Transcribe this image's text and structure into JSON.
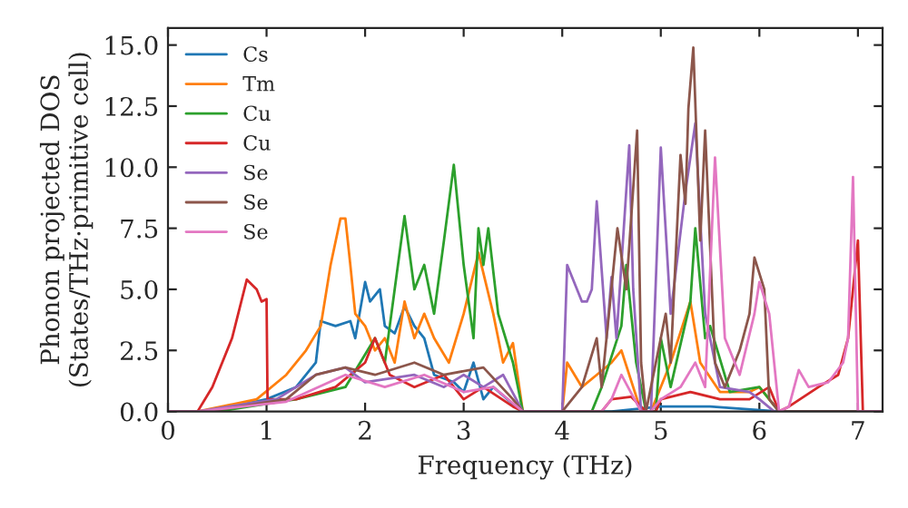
{
  "chart_data": {
    "type": "line",
    "xlabel": "Frequency (THz)",
    "ylabel": "Phonon projected DOS\n(States/THz·primitive cell)",
    "xlim": [
      0,
      7.25
    ],
    "ylim": [
      0,
      15.7
    ],
    "xticks": [
      0,
      1,
      2,
      3,
      4,
      5,
      6,
      7
    ],
    "yticks": [
      {
        "value": 0,
        "label": "0.0"
      },
      {
        "value": 2.5,
        "label": "2.5"
      },
      {
        "value": 5,
        "label": "5.0"
      },
      {
        "value": 7.5,
        "label": "7.5"
      },
      {
        "value": 10,
        "label": "10.0"
      },
      {
        "value": 12.5,
        "label": "12.5"
      },
      {
        "value": 15,
        "label": "15.0"
      }
    ],
    "grid": false,
    "legend": "top left",
    "marker": "none",
    "line_style": "solid",
    "series": [
      {
        "name": "Cs",
        "color": "#1f77b4",
        "x": [
          0,
          0.4,
          1.0,
          1.3,
          1.5,
          1.55,
          1.7,
          1.85,
          1.9,
          2.0,
          2.05,
          2.15,
          2.2,
          2.3,
          2.4,
          2.5,
          2.6,
          2.7,
          2.9,
          3.0,
          3.1,
          3.2,
          3.3,
          3.5,
          3.6,
          4.5,
          5.0,
          5.5,
          6.2,
          7.25
        ],
        "values": [
          0,
          0,
          0.5,
          1.0,
          2.0,
          3.7,
          3.5,
          3.7,
          3.0,
          5.3,
          4.5,
          5.0,
          3.5,
          3.2,
          4.3,
          3.5,
          3.0,
          1.5,
          1.2,
          0.8,
          2.0,
          0.5,
          1.0,
          0.3,
          0,
          0,
          0.2,
          0.2,
          0,
          0
        ]
      },
      {
        "name": "Tm",
        "color": "#ff7f0e",
        "x": [
          0,
          0.3,
          0.9,
          1.2,
          1.4,
          1.55,
          1.65,
          1.75,
          1.8,
          1.85,
          1.9,
          2.0,
          2.1,
          2.2,
          2.3,
          2.4,
          2.5,
          2.6,
          2.7,
          2.85,
          3.0,
          3.15,
          3.3,
          3.4,
          3.5,
          3.6,
          4.0,
          4.05,
          4.2,
          4.35,
          4.5,
          4.6,
          4.8,
          4.9,
          5.1,
          5.3,
          5.4,
          5.6,
          5.9,
          6.0,
          6.2,
          7.25
        ],
        "values": [
          0,
          0,
          0.5,
          1.5,
          2.5,
          3.5,
          6.0,
          7.9,
          7.9,
          6.0,
          4.0,
          3.5,
          2.5,
          3.0,
          2.0,
          4.5,
          3.0,
          4.0,
          3.0,
          2.0,
          4.0,
          6.5,
          4.0,
          2.0,
          2.8,
          0,
          0,
          2.0,
          1.0,
          1.5,
          2.0,
          2.5,
          0,
          0,
          2.0,
          4.5,
          2.0,
          0.8,
          0.8,
          1.0,
          0,
          0
        ]
      },
      {
        "name": "Cu",
        "color": "#2ca02c",
        "x": [
          0,
          0.5,
          1.3,
          1.8,
          2.1,
          2.2,
          2.3,
          2.4,
          2.5,
          2.6,
          2.7,
          2.8,
          2.9,
          3.0,
          3.1,
          3.15,
          3.2,
          3.25,
          3.35,
          3.5,
          3.6,
          4.3,
          4.4,
          4.6,
          4.65,
          4.75,
          4.85,
          4.95,
          5.0,
          5.1,
          5.3,
          5.35,
          5.45,
          5.5,
          5.7,
          6.0,
          6.2,
          7.25
        ],
        "values": [
          0,
          0,
          0.5,
          1.0,
          3.0,
          2.0,
          5.0,
          8.0,
          5.0,
          6.0,
          4.0,
          7.0,
          10.1,
          6.0,
          3.0,
          7.5,
          6.0,
          7.5,
          4.0,
          2.0,
          0,
          0,
          1.0,
          3.5,
          6.0,
          2.0,
          0,
          0,
          3.0,
          1.0,
          4.5,
          7.5,
          3.0,
          3.5,
          0.8,
          1.0,
          0,
          0
        ]
      },
      {
        "name": "Cu",
        "color": "#d62728",
        "x": [
          0,
          0.3,
          0.45,
          0.65,
          0.8,
          0.9,
          0.95,
          1.0,
          1.01,
          1.3,
          1.7,
          2.0,
          2.1,
          2.25,
          2.5,
          2.8,
          3.0,
          3.2,
          3.5,
          3.6,
          4.4,
          4.5,
          4.7,
          4.85,
          4.95,
          5.0,
          5.3,
          5.6,
          5.9,
          6.1,
          6.2,
          6.3,
          6.6,
          6.8,
          6.9,
          7.0,
          7.05,
          7.25
        ],
        "values": [
          0,
          0,
          1.0,
          3.0,
          5.4,
          5.0,
          4.5,
          4.6,
          0.5,
          0.5,
          1.0,
          2.0,
          3.0,
          1.5,
          1.0,
          1.5,
          0.5,
          1.0,
          0.2,
          0,
          0,
          0.5,
          0.6,
          0,
          0,
          0.5,
          0.8,
          0.5,
          0.5,
          1.0,
          0,
          0.2,
          1.0,
          1.5,
          3.0,
          7.0,
          0,
          0
        ]
      },
      {
        "name": "Se",
        "color": "#9467bd",
        "x": [
          0,
          0.3,
          1.1,
          1.5,
          1.8,
          2.0,
          2.5,
          2.8,
          3.0,
          3.2,
          3.4,
          3.6,
          4.0,
          4.05,
          4.1,
          4.2,
          4.25,
          4.3,
          4.35,
          4.45,
          4.5,
          4.55,
          4.6,
          4.68,
          4.72,
          4.8,
          4.9,
          5.0,
          5.1,
          5.25,
          5.35,
          5.45,
          5.6,
          5.9,
          6.0,
          6.15,
          7.25
        ],
        "values": [
          0,
          0,
          0.5,
          1.5,
          1.8,
          1.2,
          1.5,
          1.0,
          1.5,
          1.0,
          1.5,
          0,
          0,
          6.0,
          5.5,
          4.5,
          4.5,
          5.0,
          8.6,
          3.0,
          5.5,
          3.0,
          6.0,
          10.9,
          5.0,
          0,
          0,
          10.8,
          4.0,
          9.0,
          11.8,
          4.0,
          1.0,
          0.8,
          0.5,
          0,
          0
        ]
      },
      {
        "name": "Se",
        "color": "#8c564b",
        "x": [
          0,
          0.4,
          1.2,
          1.5,
          1.8,
          2.1,
          2.5,
          2.8,
          3.2,
          3.5,
          3.6,
          4.0,
          4.2,
          4.35,
          4.4,
          4.56,
          4.65,
          4.76,
          4.8,
          4.85,
          5.05,
          5.1,
          5.2,
          5.25,
          5.28,
          5.33,
          5.4,
          5.45,
          5.55,
          5.65,
          5.8,
          5.9,
          5.95,
          6.05,
          6.1,
          6.2,
          7.25
        ],
        "values": [
          0,
          0,
          0.5,
          1.5,
          1.8,
          1.5,
          2.0,
          1.5,
          1.8,
          0.5,
          0,
          0,
          1.0,
          3.0,
          1.0,
          7.5,
          5.0,
          11.5,
          2.0,
          0,
          4.0,
          2.0,
          10.5,
          8.5,
          12.4,
          14.9,
          7.0,
          11.5,
          2.0,
          1.0,
          2.5,
          4.0,
          6.3,
          5.0,
          0.5,
          0,
          0
        ]
      },
      {
        "name": "Se",
        "color": "#e377c2",
        "x": [
          0,
          0.3,
          1.2,
          1.8,
          2.2,
          2.6,
          3.0,
          3.3,
          3.6,
          4.4,
          4.5,
          4.6,
          4.8,
          4.9,
          5.0,
          5.2,
          5.35,
          5.45,
          5.55,
          5.65,
          5.8,
          5.95,
          6.0,
          6.1,
          6.2,
          6.3,
          6.4,
          6.5,
          6.7,
          6.85,
          6.9,
          6.95,
          7.0,
          7.25
        ],
        "values": [
          0,
          0,
          0.4,
          1.5,
          1.0,
          1.5,
          0.8,
          1.0,
          0,
          0,
          0.5,
          1.5,
          0,
          0,
          0.5,
          1.0,
          2.0,
          1.0,
          10.4,
          3.0,
          1.5,
          4.0,
          5.3,
          4.0,
          0,
          0.2,
          1.7,
          1.0,
          1.2,
          2.0,
          3.0,
          9.6,
          0,
          0
        ]
      }
    ]
  }
}
